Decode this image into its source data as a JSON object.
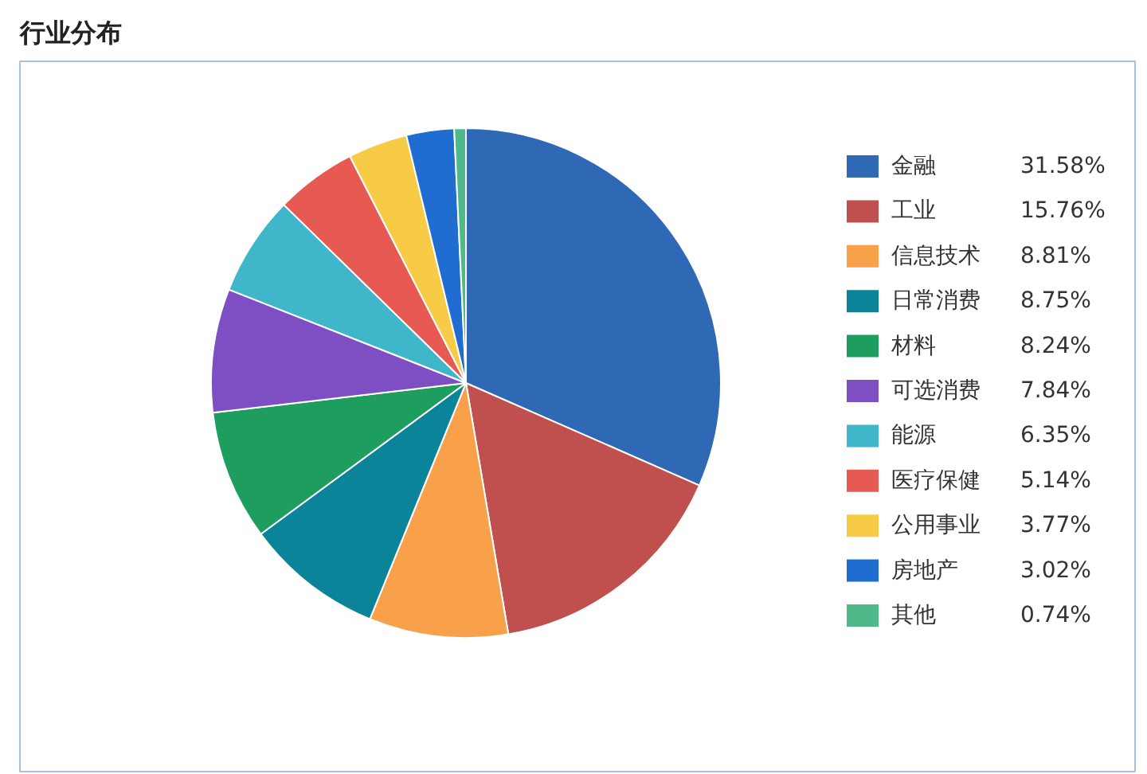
{
  "chart_data": {
    "type": "pie",
    "title": "行业分布",
    "categories": [
      "金融",
      "工业",
      "信息技术",
      "日常消费",
      "材料",
      "可选消费",
      "能源",
      "医疗保健",
      "公用事业",
      "房地产",
      "其他"
    ],
    "values": [
      31.58,
      15.76,
      8.81,
      8.75,
      8.24,
      7.84,
      6.35,
      5.14,
      3.77,
      3.02,
      0.74
    ],
    "colors": [
      "#2f68b4",
      "#c0504d",
      "#f9a04b",
      "#0b8499",
      "#1e9e5e",
      "#7e4fc2",
      "#3fb6c9",
      "#e75a54",
      "#f7cb45",
      "#1f6dd1",
      "#4fb98a"
    ],
    "value_labels": [
      "31.58%",
      "15.76%",
      "8.81%",
      "8.75%",
      "8.24%",
      "7.84%",
      "6.35%",
      "5.14%",
      "3.77%",
      "3.02%",
      "0.74%"
    ],
    "legend": "right"
  }
}
